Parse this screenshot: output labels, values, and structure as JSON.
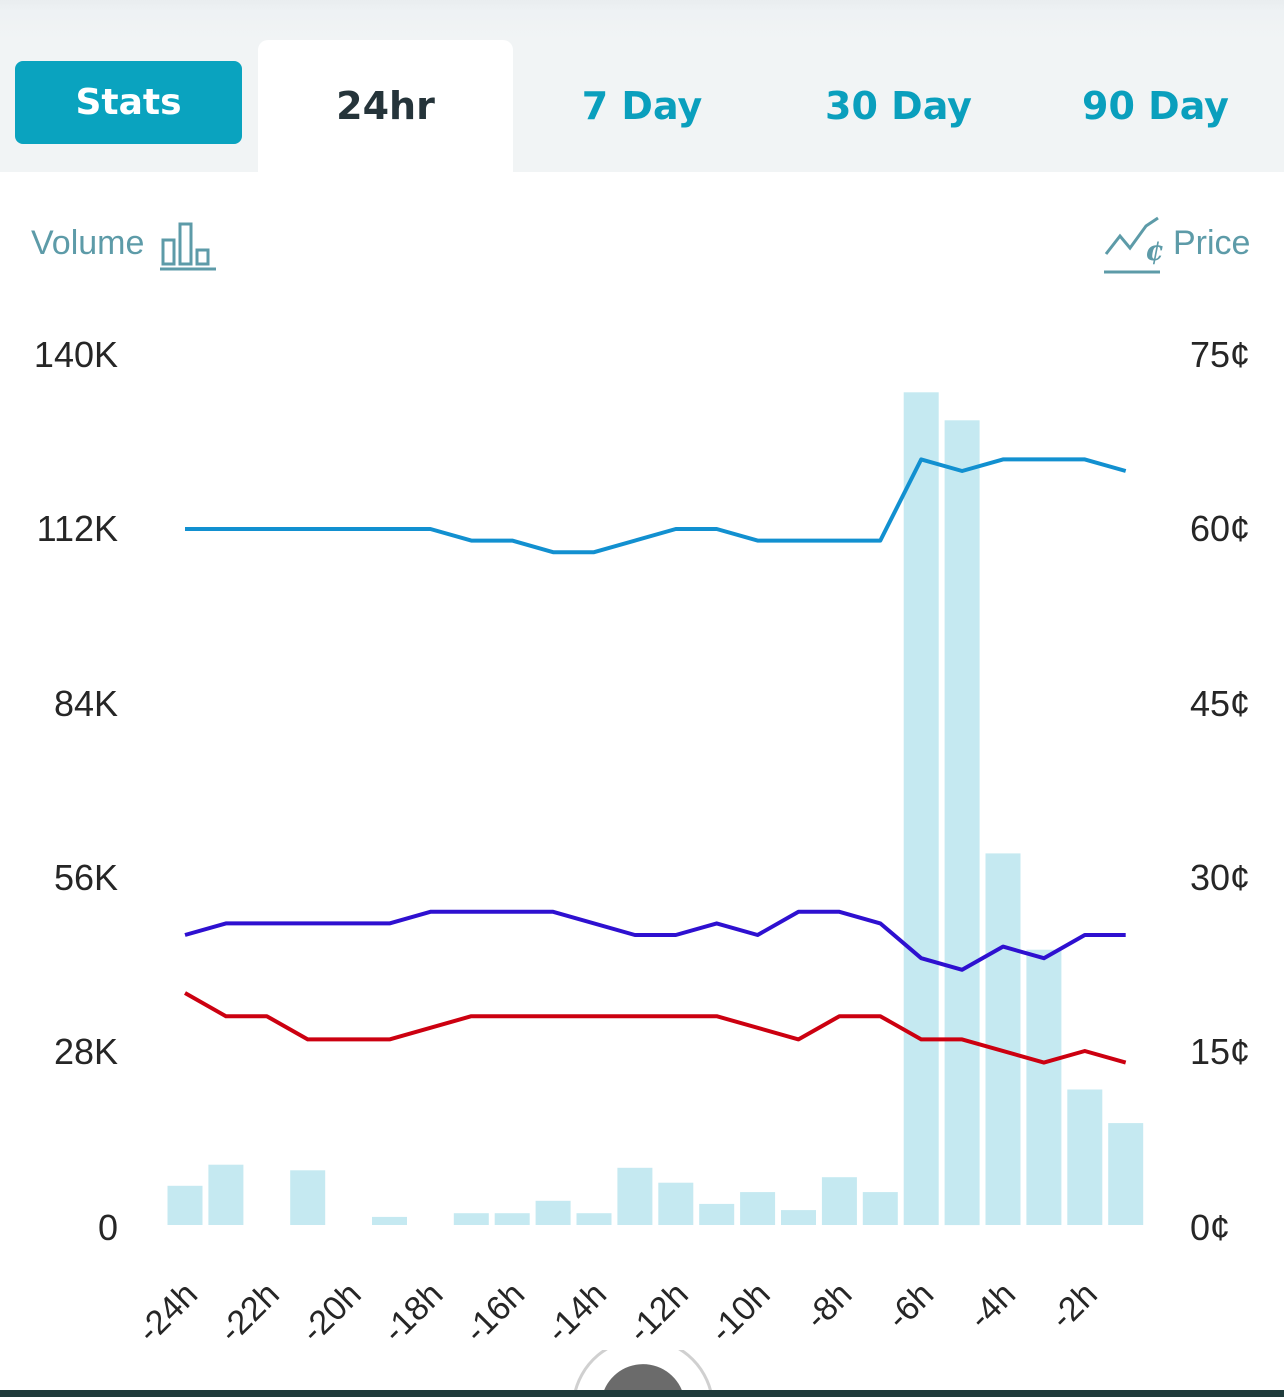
{
  "tabs": {
    "stats": "Stats",
    "day1": "24hr",
    "day7": "7 Day",
    "day30": "30 Day",
    "day90": "90 Day"
  },
  "legend": {
    "volume": "Volume",
    "price": "Price"
  },
  "colors": {
    "accent": "#0aa3bf",
    "volume_bars": "#c5e9f1",
    "series_top": "#1290d0",
    "series_mid": "#2e10d0",
    "series_low": "#cc0010"
  },
  "chart_data": {
    "type": "bar+line",
    "x_ticks": [
      "-24h",
      "-22h",
      "-20h",
      "-18h",
      "-16h",
      "-14h",
      "-12h",
      "-10h",
      "-8h",
      "-6h",
      "-4h",
      "-2h"
    ],
    "y_left": {
      "ticks": [
        "140K",
        "112K",
        "84K",
        "56K",
        "28K",
        "0"
      ],
      "range": [
        0,
        140000
      ]
    },
    "y_right": {
      "ticks": [
        "75¢",
        "60¢",
        "45¢",
        "30¢",
        "15¢",
        "0¢"
      ],
      "range": [
        0,
        75
      ]
    },
    "volume_bars": [
      {
        "x": -24,
        "v": 6300
      },
      {
        "x": -23,
        "v": 9700
      },
      {
        "x": -22,
        "v": 0
      },
      {
        "x": -21,
        "v": 8800
      },
      {
        "x": -20,
        "v": 0
      },
      {
        "x": -19,
        "v": 1300
      },
      {
        "x": -18,
        "v": 0
      },
      {
        "x": -17,
        "v": 1900
      },
      {
        "x": -16,
        "v": 1900
      },
      {
        "x": -15,
        "v": 3900
      },
      {
        "x": -14,
        "v": 1900
      },
      {
        "x": -13,
        "v": 9200
      },
      {
        "x": -12,
        "v": 6800
      },
      {
        "x": -11,
        "v": 3400
      },
      {
        "x": -10,
        "v": 5300
      },
      {
        "x": -9,
        "v": 2400
      },
      {
        "x": -8,
        "v": 7700
      },
      {
        "x": -7,
        "v": 5300
      },
      {
        "x": -6,
        "v": 134000
      },
      {
        "x": -5,
        "v": 129500
      },
      {
        "x": -4,
        "v": 59800
      },
      {
        "x": -3,
        "v": 44300
      },
      {
        "x": -2,
        "v": 21800
      },
      {
        "x": -1,
        "v": 16400
      }
    ],
    "price_series": [
      {
        "values": [
          {
            "x": -24,
            "y": 60
          },
          {
            "x": -18,
            "y": 60
          },
          {
            "x": -17,
            "y": 59
          },
          {
            "x": -16,
            "y": 59
          },
          {
            "x": -15,
            "y": 58
          },
          {
            "x": -14,
            "y": 58
          },
          {
            "x": -12,
            "y": 60
          },
          {
            "x": -11,
            "y": 60
          },
          {
            "x": -10,
            "y": 59
          },
          {
            "x": -7,
            "y": 59
          },
          {
            "x": -6,
            "y": 66
          },
          {
            "x": -5,
            "y": 65
          },
          {
            "x": -4,
            "y": 66
          },
          {
            "x": -2,
            "y": 66
          },
          {
            "x": -1,
            "y": 65
          }
        ]
      },
      {
        "values": [
          {
            "x": -24,
            "y": 25
          },
          {
            "x": -23,
            "y": 26
          },
          {
            "x": -19,
            "y": 26
          },
          {
            "x": -18,
            "y": 27
          },
          {
            "x": -15,
            "y": 27
          },
          {
            "x": -13,
            "y": 25
          },
          {
            "x": -12,
            "y": 25
          },
          {
            "x": -11,
            "y": 26
          },
          {
            "x": -10,
            "y": 25
          },
          {
            "x": -9,
            "y": 27
          },
          {
            "x": -8,
            "y": 27
          },
          {
            "x": -7,
            "y": 26
          },
          {
            "x": -6,
            "y": 23
          },
          {
            "x": -5,
            "y": 22
          },
          {
            "x": -4,
            "y": 24
          },
          {
            "x": -3,
            "y": 23
          },
          {
            "x": -2,
            "y": 25
          },
          {
            "x": -1,
            "y": 25
          }
        ]
      },
      {
        "values": [
          {
            "x": -24,
            "y": 20
          },
          {
            "x": -23,
            "y": 18
          },
          {
            "x": -22,
            "y": 18
          },
          {
            "x": -21,
            "y": 16
          },
          {
            "x": -19,
            "y": 16
          },
          {
            "x": -17,
            "y": 18
          },
          {
            "x": -11,
            "y": 18
          },
          {
            "x": -9,
            "y": 16
          },
          {
            "x": -8,
            "y": 18
          },
          {
            "x": -7,
            "y": 18
          },
          {
            "x": -6,
            "y": 16
          },
          {
            "x": -5,
            "y": 16
          },
          {
            "x": -3,
            "y": 14
          },
          {
            "x": -2,
            "y": 15
          },
          {
            "x": -1,
            "y": 14
          }
        ]
      }
    ]
  }
}
